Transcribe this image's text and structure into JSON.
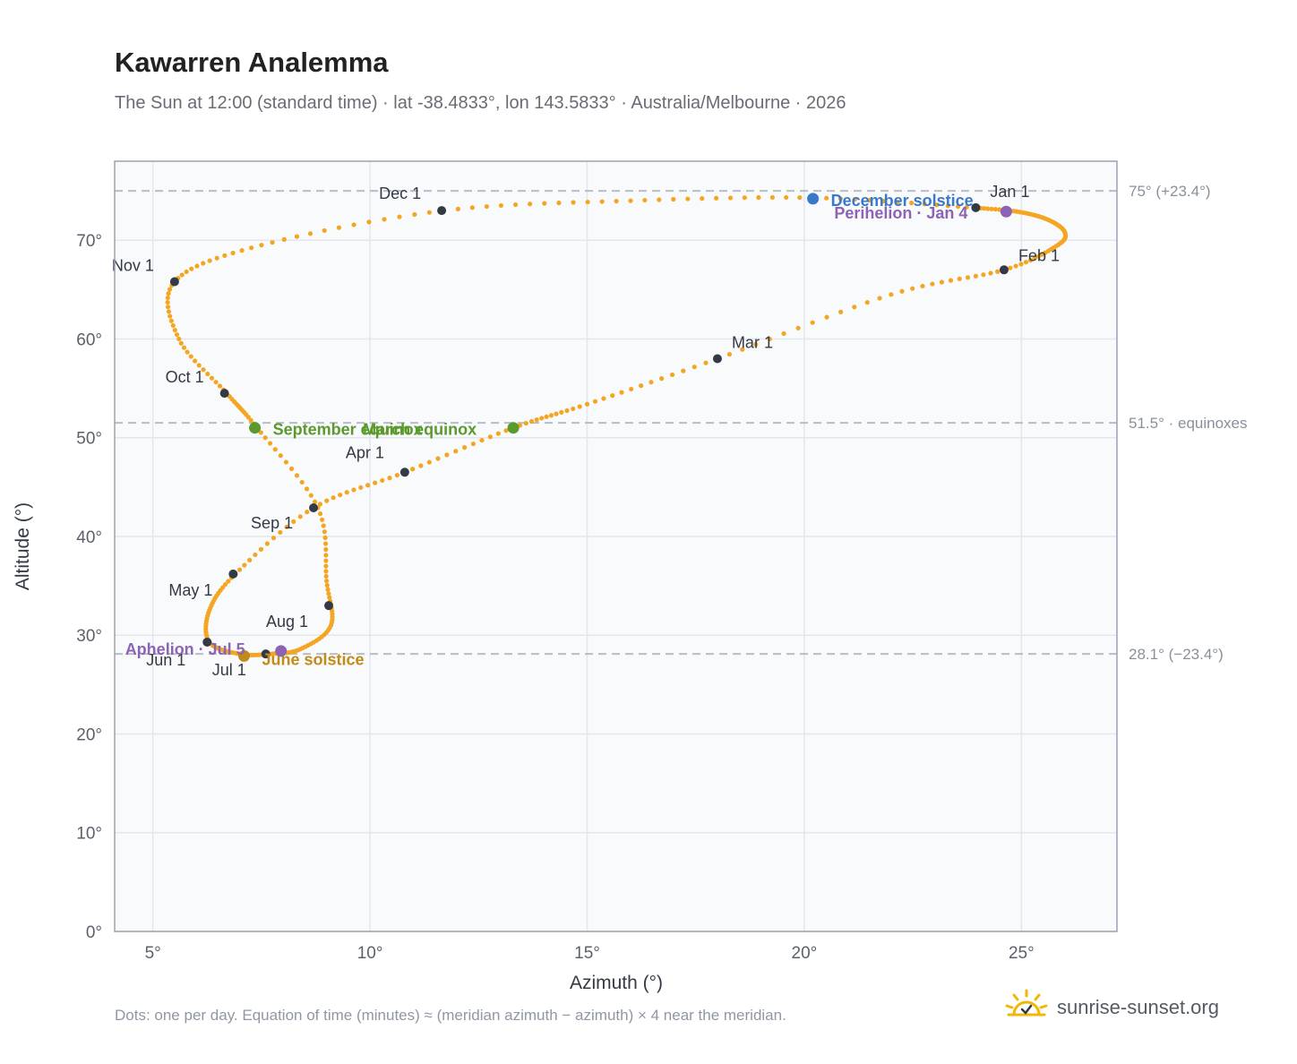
{
  "title": "Kawarren Analemma",
  "subtitle": "The Sun at 12:00 (standard time) · lat -38.4833°, lon 143.5833° · Australia/Melbourne · 2026",
  "footer_note": "Dots: one per day. Equation of time (minutes) ≈ (meridian azimuth − azimuth) × 4 near the meridian.",
  "brand": {
    "name": "sunrise-sunset.org",
    "icon": "sun-logo-icon"
  },
  "colors": {
    "curve": "#f4a623",
    "month_marker": "#343a45",
    "december_solstice": "#3a78c9",
    "june_solstice": "#c28a17",
    "equinox": "#5a9a2c",
    "perihelion": "#8c63b5",
    "reference_line": "#b7bdc6",
    "plot_bg": "#f8fafc"
  },
  "chart_data": {
    "type": "scatter",
    "xlabel": "Azimuth (°)",
    "ylabel": "Altitude (°)",
    "xlim": [
      4.12,
      27.2
    ],
    "ylim": [
      0,
      78
    ],
    "x_ticks": [
      5,
      10,
      15,
      20,
      25
    ],
    "x_tick_labels": [
      "5°",
      "10°",
      "15°",
      "20°",
      "25°"
    ],
    "y_ticks": [
      0,
      10,
      20,
      30,
      40,
      50,
      60,
      70
    ],
    "y_tick_labels": [
      "0°",
      "10°",
      "20°",
      "30°",
      "40°",
      "50°",
      "60°",
      "70°"
    ],
    "grid": true,
    "reference_lines": [
      {
        "y": 75.0,
        "label": "75° (+23.4°)"
      },
      {
        "y": 51.5,
        "label": "51.5° · equinoxes"
      },
      {
        "y": 28.1,
        "label": "28.1° (−23.4°)"
      }
    ],
    "series": [
      {
        "style": "daily-dots",
        "points": [
          [
            23.9,
            73.3
          ],
          [
            24.9,
            72.9
          ],
          [
            25.6,
            72.1
          ],
          [
            26.0,
            70.8
          ],
          [
            25.8,
            69.4
          ],
          [
            24.6,
            67.0
          ],
          [
            22.0,
            64.5
          ],
          [
            18.0,
            58.0
          ],
          [
            15.0,
            53.4
          ],
          [
            13.3,
            51.0
          ],
          [
            10.8,
            46.5
          ],
          [
            8.7,
            42.9
          ],
          [
            6.9,
            36.2
          ],
          [
            6.3,
            32.5
          ],
          [
            6.3,
            29.3
          ],
          [
            7.0,
            28.1
          ],
          [
            7.7,
            28.1
          ],
          [
            8.4,
            28.6
          ],
          [
            9.1,
            31.0
          ],
          [
            9.0,
            35.5
          ],
          [
            8.8,
            42.9
          ],
          [
            7.4,
            51.0
          ],
          [
            6.7,
            54.5
          ],
          [
            5.6,
            60.0
          ],
          [
            5.5,
            65.8
          ],
          [
            7.5,
            69.5
          ],
          [
            11.7,
            73.0
          ],
          [
            16.0,
            74.0
          ],
          [
            20.2,
            74.3
          ],
          [
            23.9,
            73.3
          ]
        ]
      }
    ],
    "month_markers": [
      {
        "label": "Jan 1",
        "x": 23.95,
        "y": 73.3
      },
      {
        "label": "Feb 1",
        "x": 24.6,
        "y": 67.0
      },
      {
        "label": "Mar 1",
        "x": 18.0,
        "y": 58.0
      },
      {
        "label": "Apr 1",
        "x": 10.8,
        "y": 46.5
      },
      {
        "label": "May 1",
        "x": 6.85,
        "y": 36.2
      },
      {
        "label": "Jun 1",
        "x": 6.25,
        "y": 29.3
      },
      {
        "label": "Jul 1",
        "x": 7.6,
        "y": 28.1
      },
      {
        "label": "Aug 1",
        "x": 9.05,
        "y": 33.0
      },
      {
        "label": "Sep 1",
        "x": 8.7,
        "y": 42.9
      },
      {
        "label": "Oct 1",
        "x": 6.65,
        "y": 54.5
      },
      {
        "label": "Nov 1",
        "x": 5.5,
        "y": 65.8
      },
      {
        "label": "Dec 1",
        "x": 11.65,
        "y": 73.0
      }
    ],
    "events": [
      {
        "label": "December solstice",
        "x": 20.2,
        "y": 74.2,
        "kind": "december_solstice"
      },
      {
        "label": "Perihelion · Jan 4",
        "x": 24.65,
        "y": 72.9,
        "kind": "perihelion"
      },
      {
        "label": "March equinox",
        "x": 13.3,
        "y": 51.0,
        "kind": "equinox"
      },
      {
        "label": "September equinox",
        "x": 7.35,
        "y": 51.0,
        "kind": "equinox"
      },
      {
        "label": "June solstice",
        "x": 7.1,
        "y": 27.9,
        "kind": "june_solstice"
      },
      {
        "label": "Aphelion · Jul 5",
        "x": 7.95,
        "y": 28.4,
        "kind": "perihelion"
      }
    ]
  }
}
